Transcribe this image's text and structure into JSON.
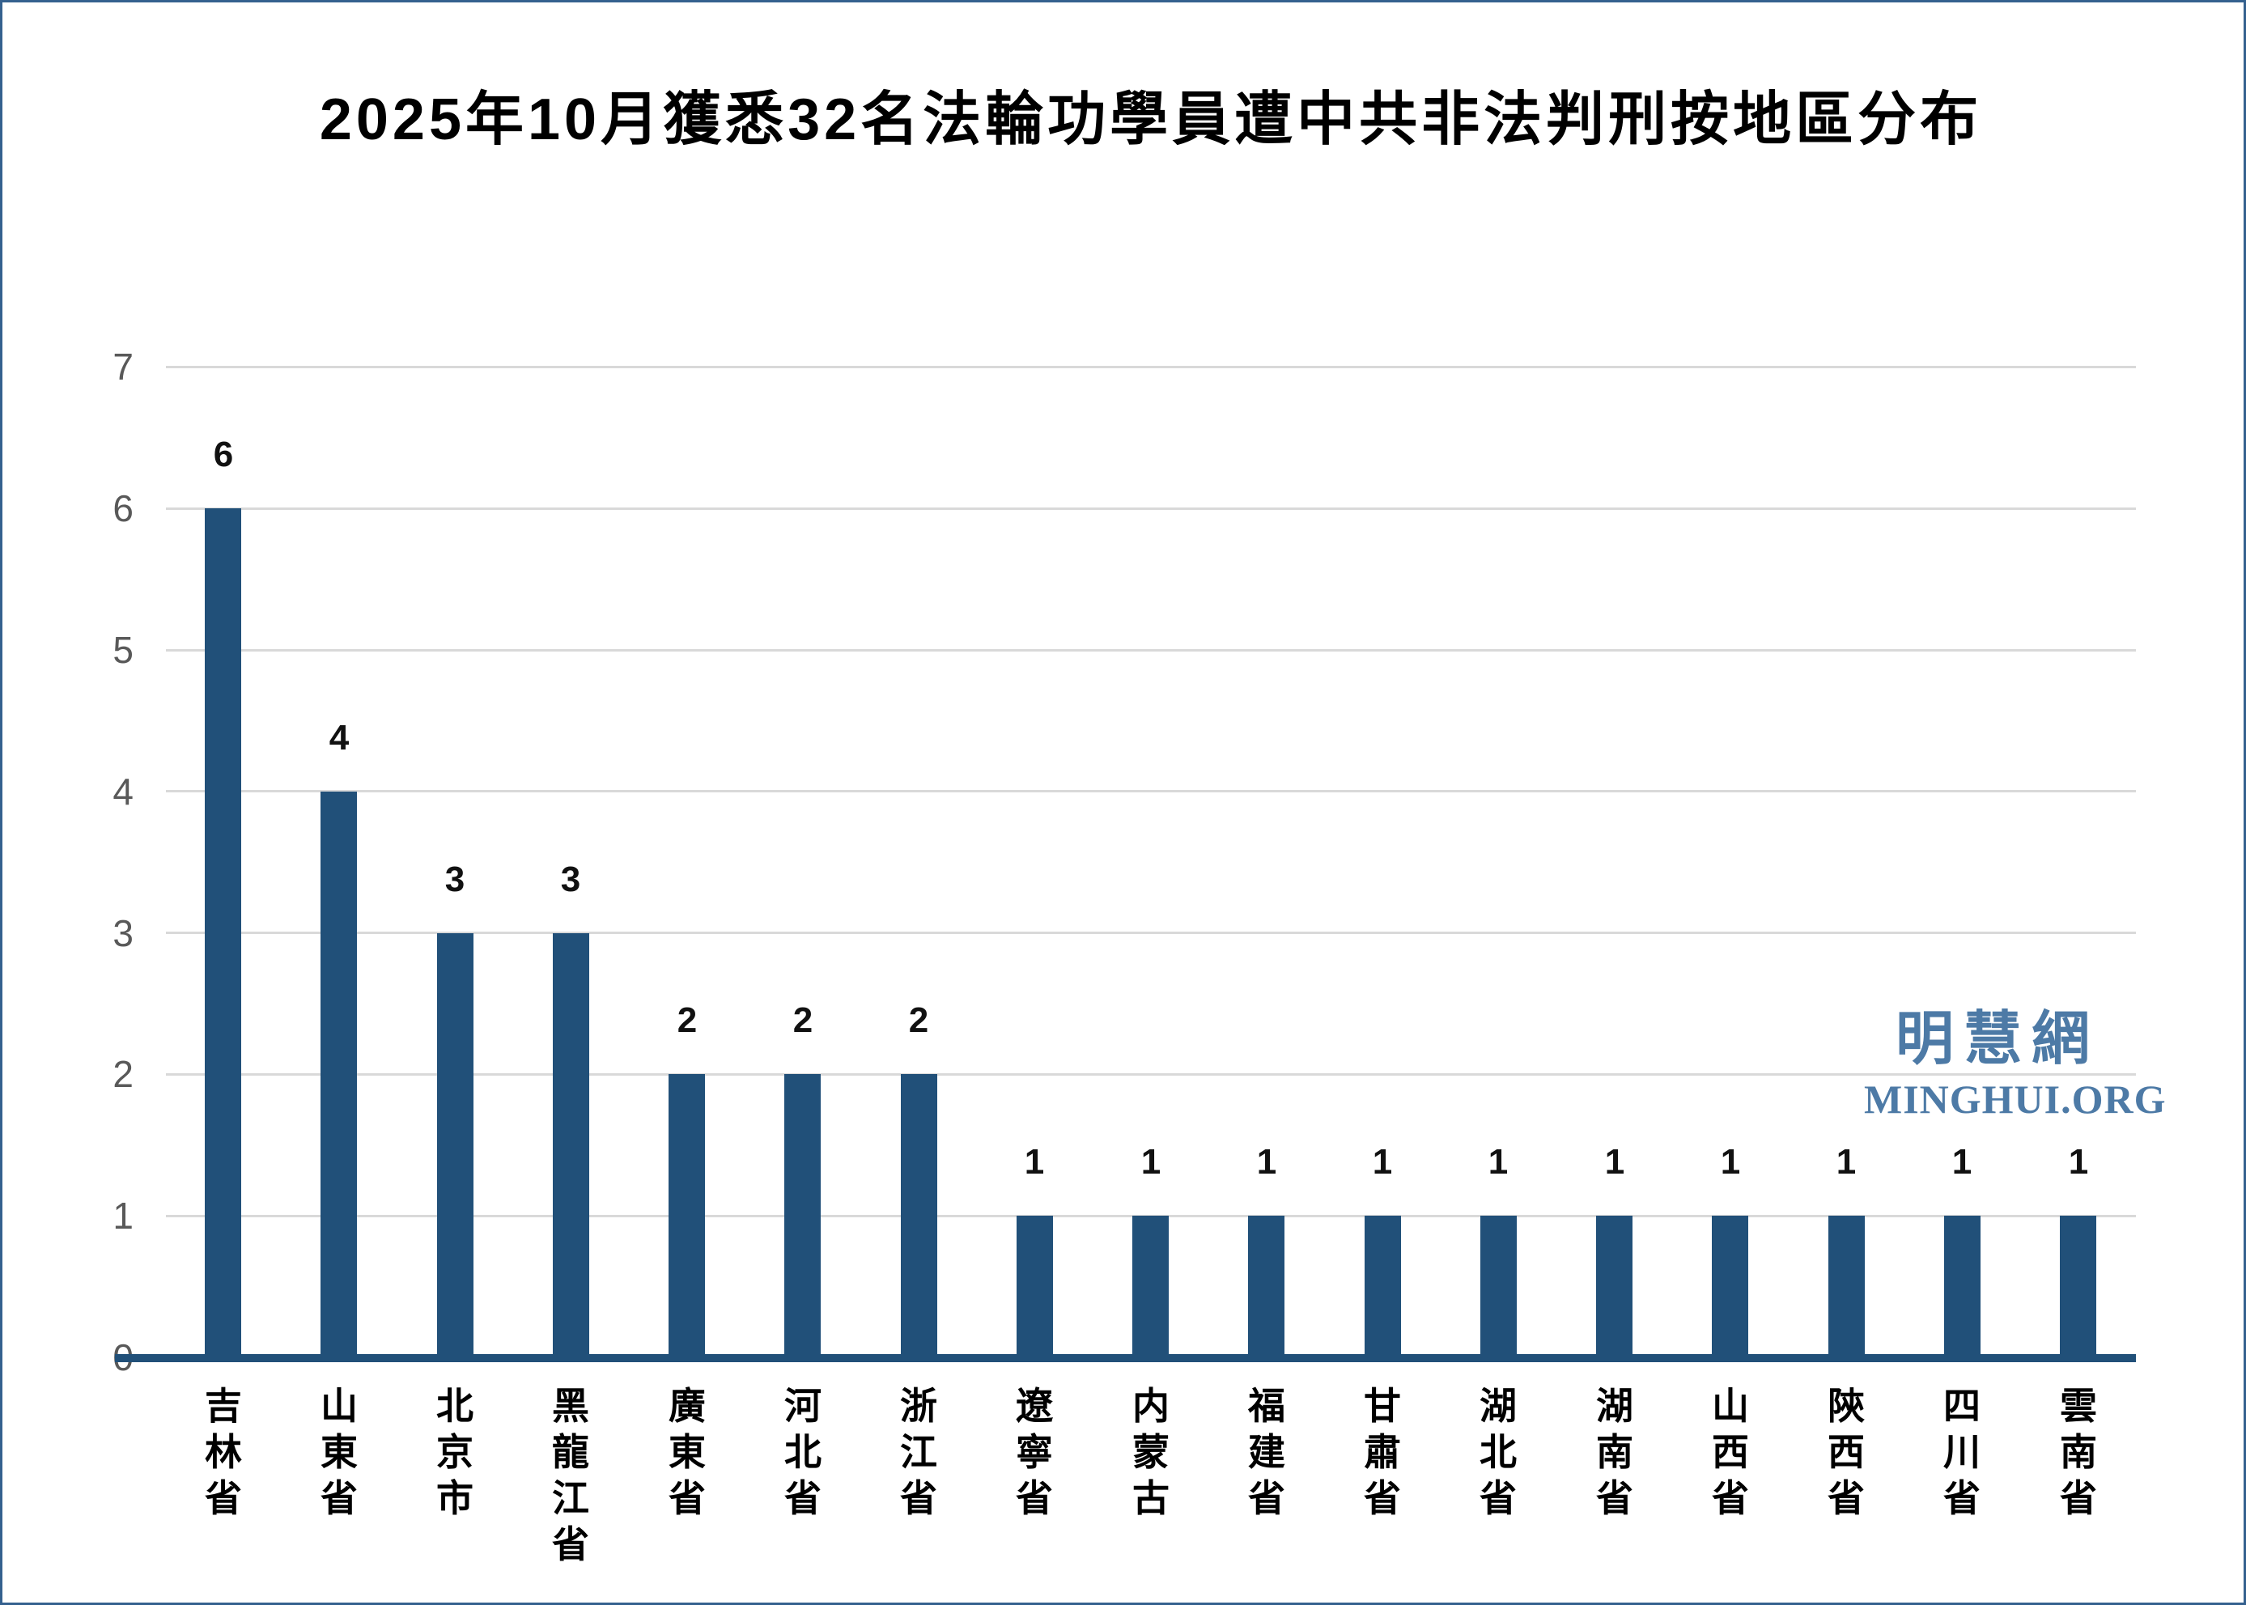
{
  "page": {
    "title": "2025年10月獲悉32名法輪功學員遭中共非法判刑按地區分布"
  },
  "watermark": {
    "cjk": "明慧網",
    "latin": "MINGHUI.ORG",
    "color": "#4D7AA6"
  },
  "chart_data": {
    "type": "bar",
    "title": "2025年10月獲悉32名法輪功學員遭中共非法判刑按地區分布",
    "categories": [
      "吉林省",
      "山東省",
      "北京市",
      "黑龍江省",
      "廣東省",
      "河北省",
      "浙江省",
      "遼寧省",
      "内蒙古",
      "福建省",
      "甘肅省",
      "湖北省",
      "湖南省",
      "山西省",
      "陝西省",
      "四川省",
      "雲南省"
    ],
    "values": [
      6,
      4,
      3,
      3,
      2,
      2,
      2,
      1,
      1,
      1,
      1,
      1,
      1,
      1,
      1,
      1,
      1
    ],
    "xlabel": "",
    "ylabel": "",
    "ylim": [
      0,
      7
    ],
    "yticks": [
      0,
      1,
      2,
      3,
      4,
      5,
      6,
      7
    ],
    "grid": true,
    "legend": false,
    "data_labels": true,
    "bar_color": "#215079",
    "axis_line_color": "#215079",
    "gridline_color": "#D9D9D9",
    "tick_label_color": "#595959",
    "data_label_color": "#111111",
    "title_color": "#000000",
    "category_label_color": "#000000"
  }
}
